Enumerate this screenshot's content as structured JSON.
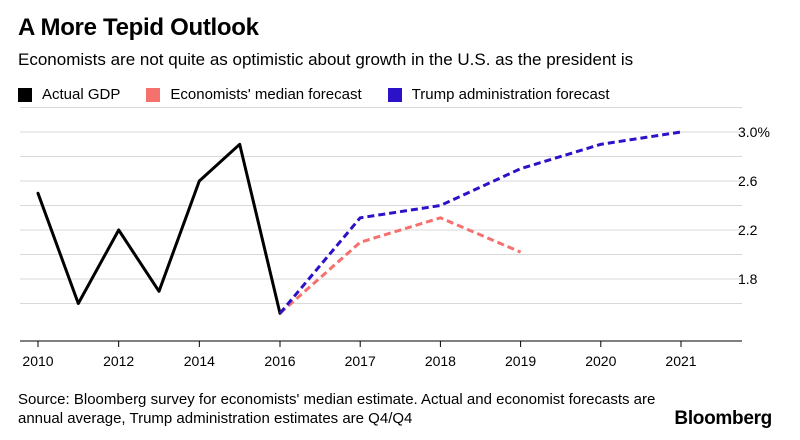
{
  "chart_data": {
    "type": "line",
    "title": "A More Tepid Outlook",
    "subtitle": "Economists are not quite as optimistic about growth in the U.S. as the president is",
    "x_ticks": [
      "2010",
      "2012",
      "2014",
      "2016",
      "2017",
      "2018",
      "2019",
      "2020",
      "2021"
    ],
    "y_ticks": [
      "3.0%",
      "2.6",
      "2.2",
      "1.8"
    ],
    "y_tick_values": [
      3.0,
      2.6,
      2.2,
      1.8
    ],
    "ylim": [
      1.5,
      3.15
    ],
    "grid": true,
    "legend_position": "top",
    "series": [
      {
        "name": "Actual GDP",
        "color": "#000000",
        "dash": false,
        "points": [
          [
            2010,
            2.5
          ],
          [
            2011,
            1.6
          ],
          [
            2012,
            2.2
          ],
          [
            2013,
            1.7
          ],
          [
            2014,
            2.6
          ],
          [
            2015,
            2.9
          ],
          [
            2016,
            1.52
          ]
        ]
      },
      {
        "name": "Economists' median forecast",
        "color": "#f4716e",
        "dash": true,
        "points": [
          [
            2016,
            1.52
          ],
          [
            2017,
            2.1
          ],
          [
            2018,
            2.3
          ],
          [
            2019,
            2.02
          ]
        ]
      },
      {
        "name": "Trump administration forecast",
        "color": "#2b12c9",
        "dash": true,
        "points": [
          [
            2016,
            1.52
          ],
          [
            2017,
            2.3
          ],
          [
            2018,
            2.4
          ],
          [
            2019,
            2.7
          ],
          [
            2020,
            2.9
          ],
          [
            2021,
            3.0
          ]
        ]
      }
    ]
  },
  "source_text": "Source: Bloomberg survey for economists' median estimate. Actual and economist forecasts are annual average, Trump administration estimates are Q4/Q4",
  "brand": "Bloomberg"
}
